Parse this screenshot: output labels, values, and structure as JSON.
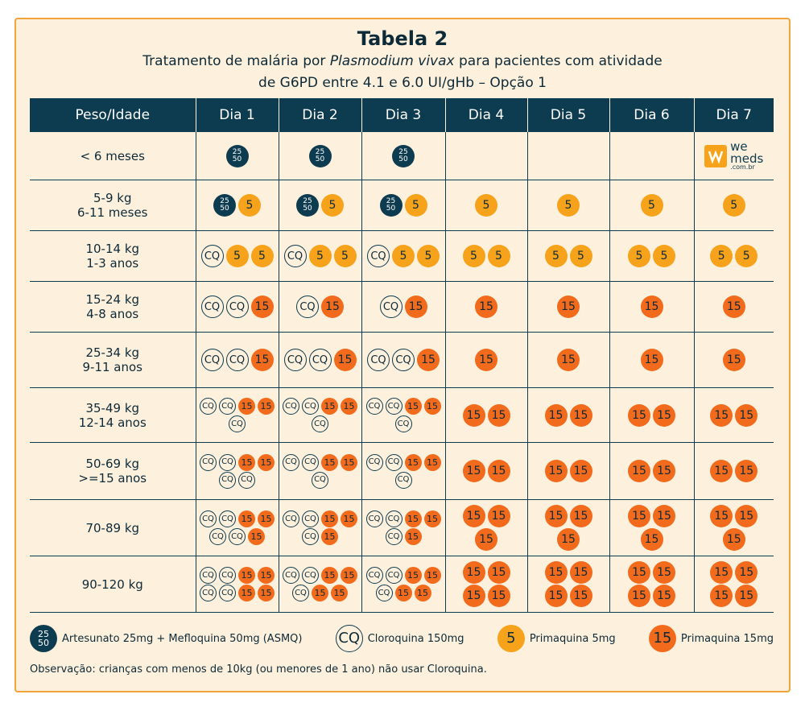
{
  "header": {
    "title": "Tabela 2",
    "subtitle_start": "Tratamento de malária por ",
    "subtitle_italic": "Plasmodium vivax",
    "subtitle_end": " para pacientes com atividade",
    "subtitle_line2": "de G6PD entre 4.1 e 6.0 UI/gHb – Opção 1"
  },
  "table": {
    "columns": [
      "Peso/Idade",
      "Dia 1",
      "Dia 2",
      "Dia 3",
      "Dia 4",
      "Dia 5",
      "Dia 6",
      "Dia 7"
    ],
    "rows": [
      {
        "label": [
          "< 6 meses"
        ],
        "cells": [
          [
            [
              [
                "25",
                "50"
              ]
            ]
          ],
          [
            [
              [
                "25",
                "50"
              ]
            ]
          ],
          [
            [
              [
                "25",
                "50"
              ]
            ]
          ],
          [],
          [],
          [],
          []
        ]
      },
      {
        "label": [
          "5-9 kg",
          "6-11 meses"
        ],
        "cells": [
          [
            [
              [
                "25",
                "50"
              ],
              "5"
            ]
          ],
          [
            [
              [
                "25",
                "50"
              ],
              "5"
            ]
          ],
          [
            [
              [
                "25",
                "50"
              ],
              "5"
            ]
          ],
          [
            [
              "5"
            ]
          ],
          [
            [
              "5"
            ]
          ],
          [
            [
              "5"
            ]
          ],
          [
            [
              "5"
            ]
          ]
        ]
      },
      {
        "label": [
          "10-14 kg",
          "1-3 anos"
        ],
        "cells": [
          [
            [
              "CQ",
              "5",
              "5"
            ]
          ],
          [
            [
              "CQ",
              "5",
              "5"
            ]
          ],
          [
            [
              "CQ",
              "5",
              "5"
            ]
          ],
          [
            [
              "5",
              "5"
            ]
          ],
          [
            [
              "5",
              "5"
            ]
          ],
          [
            [
              "5",
              "5"
            ]
          ],
          [
            [
              "5",
              "5"
            ]
          ]
        ]
      },
      {
        "label": [
          "15-24 kg",
          "4-8 anos"
        ],
        "cells": [
          [
            [
              "CQ",
              "CQ",
              "15"
            ]
          ],
          [
            [
              "CQ",
              "15"
            ]
          ],
          [
            [
              "CQ",
              "15"
            ]
          ],
          [
            [
              "15"
            ]
          ],
          [
            [
              "15"
            ]
          ],
          [
            [
              "15"
            ]
          ],
          [
            [
              "15"
            ]
          ]
        ]
      },
      {
        "label": [
          "25-34 kg",
          "9-11 anos"
        ],
        "cells": [
          [
            [
              "CQ",
              "CQ",
              "15"
            ]
          ],
          [
            [
              "CQ",
              "CQ",
              "15"
            ]
          ],
          [
            [
              "CQ",
              "CQ",
              "15"
            ]
          ],
          [
            [
              "15"
            ]
          ],
          [
            [
              "15"
            ]
          ],
          [
            [
              "15"
            ]
          ],
          [
            [
              "15"
            ]
          ]
        ]
      },
      {
        "label": [
          "35-49 kg",
          "12-14 anos"
        ],
        "cells": [
          [
            [
              "CQ",
              "CQ",
              "15",
              "15"
            ],
            [
              "CQ"
            ]
          ],
          [
            [
              "CQ",
              "CQ",
              "15",
              "15"
            ],
            [
              "CQ"
            ]
          ],
          [
            [
              "CQ",
              "CQ",
              "15",
              "15"
            ],
            [
              "CQ"
            ]
          ],
          [
            [
              "15",
              "15"
            ]
          ],
          [
            [
              "15",
              "15"
            ]
          ],
          [
            [
              "15",
              "15"
            ]
          ],
          [
            [
              "15",
              "15"
            ]
          ]
        ]
      },
      {
        "label": [
          "50-69 kg",
          ">=15 anos"
        ],
        "cells": [
          [
            [
              "CQ",
              "CQ",
              "15",
              "15"
            ],
            [
              "CQ",
              "CQ"
            ]
          ],
          [
            [
              "CQ",
              "CQ",
              "15",
              "15"
            ],
            [
              "CQ"
            ]
          ],
          [
            [
              "CQ",
              "CQ",
              "15",
              "15"
            ],
            [
              "CQ"
            ]
          ],
          [
            [
              "15",
              "15"
            ]
          ],
          [
            [
              "15",
              "15"
            ]
          ],
          [
            [
              "15",
              "15"
            ]
          ],
          [
            [
              "15",
              "15"
            ]
          ]
        ]
      },
      {
        "label": [
          "70-89 kg"
        ],
        "cells": [
          [
            [
              "CQ",
              "CQ",
              "15",
              "15"
            ],
            [
              "CQ",
              "CQ",
              "15"
            ]
          ],
          [
            [
              "CQ",
              "CQ",
              "15",
              "15"
            ],
            [
              "CQ",
              "15"
            ]
          ],
          [
            [
              "CQ",
              "CQ",
              "15",
              "15"
            ],
            [
              "CQ",
              "15"
            ]
          ],
          [
            [
              "15",
              "15"
            ],
            [
              "15"
            ]
          ],
          [
            [
              "15",
              "15"
            ],
            [
              "15"
            ]
          ],
          [
            [
              "15",
              "15"
            ],
            [
              "15"
            ]
          ],
          [
            [
              "15",
              "15"
            ],
            [
              "15"
            ]
          ]
        ]
      },
      {
        "label": [
          "90-120 kg"
        ],
        "cells": [
          [
            [
              "CQ",
              "CQ",
              "15",
              "15"
            ],
            [
              "CQ",
              "CQ",
              "15",
              "15"
            ]
          ],
          [
            [
              "CQ",
              "CQ",
              "15",
              "15"
            ],
            [
              "CQ",
              "15",
              "15"
            ]
          ],
          [
            [
              "CQ",
              "CQ",
              "15",
              "15"
            ],
            [
              "CQ",
              "15",
              "15"
            ]
          ],
          [
            [
              "15",
              "15"
            ],
            [
              "15",
              "15"
            ]
          ],
          [
            [
              "15",
              "15"
            ],
            [
              "15",
              "15"
            ]
          ],
          [
            [
              "15",
              "15"
            ],
            [
              "15",
              "15"
            ]
          ],
          [
            [
              "15",
              "15"
            ],
            [
              "15",
              "15"
            ]
          ]
        ]
      }
    ]
  },
  "logo": {
    "brand_top": "we",
    "brand_bottom": "meds",
    "domain": ".com.br"
  },
  "legend": [
    {
      "icon": [
        "25",
        "50"
      ],
      "label": "Artesunato 25mg + Mefloquina 50mg (ASMQ)"
    },
    {
      "icon": "CQ",
      "label": "Cloroquina 150mg"
    },
    {
      "icon": "5",
      "label": "Primaquina 5mg"
    },
    {
      "icon": "15",
      "label": "Primaquina 15mg"
    }
  ],
  "note": "Observação: crianças com menos de 10kg (ou menores de 1 ano) não usar Cloroquina."
}
